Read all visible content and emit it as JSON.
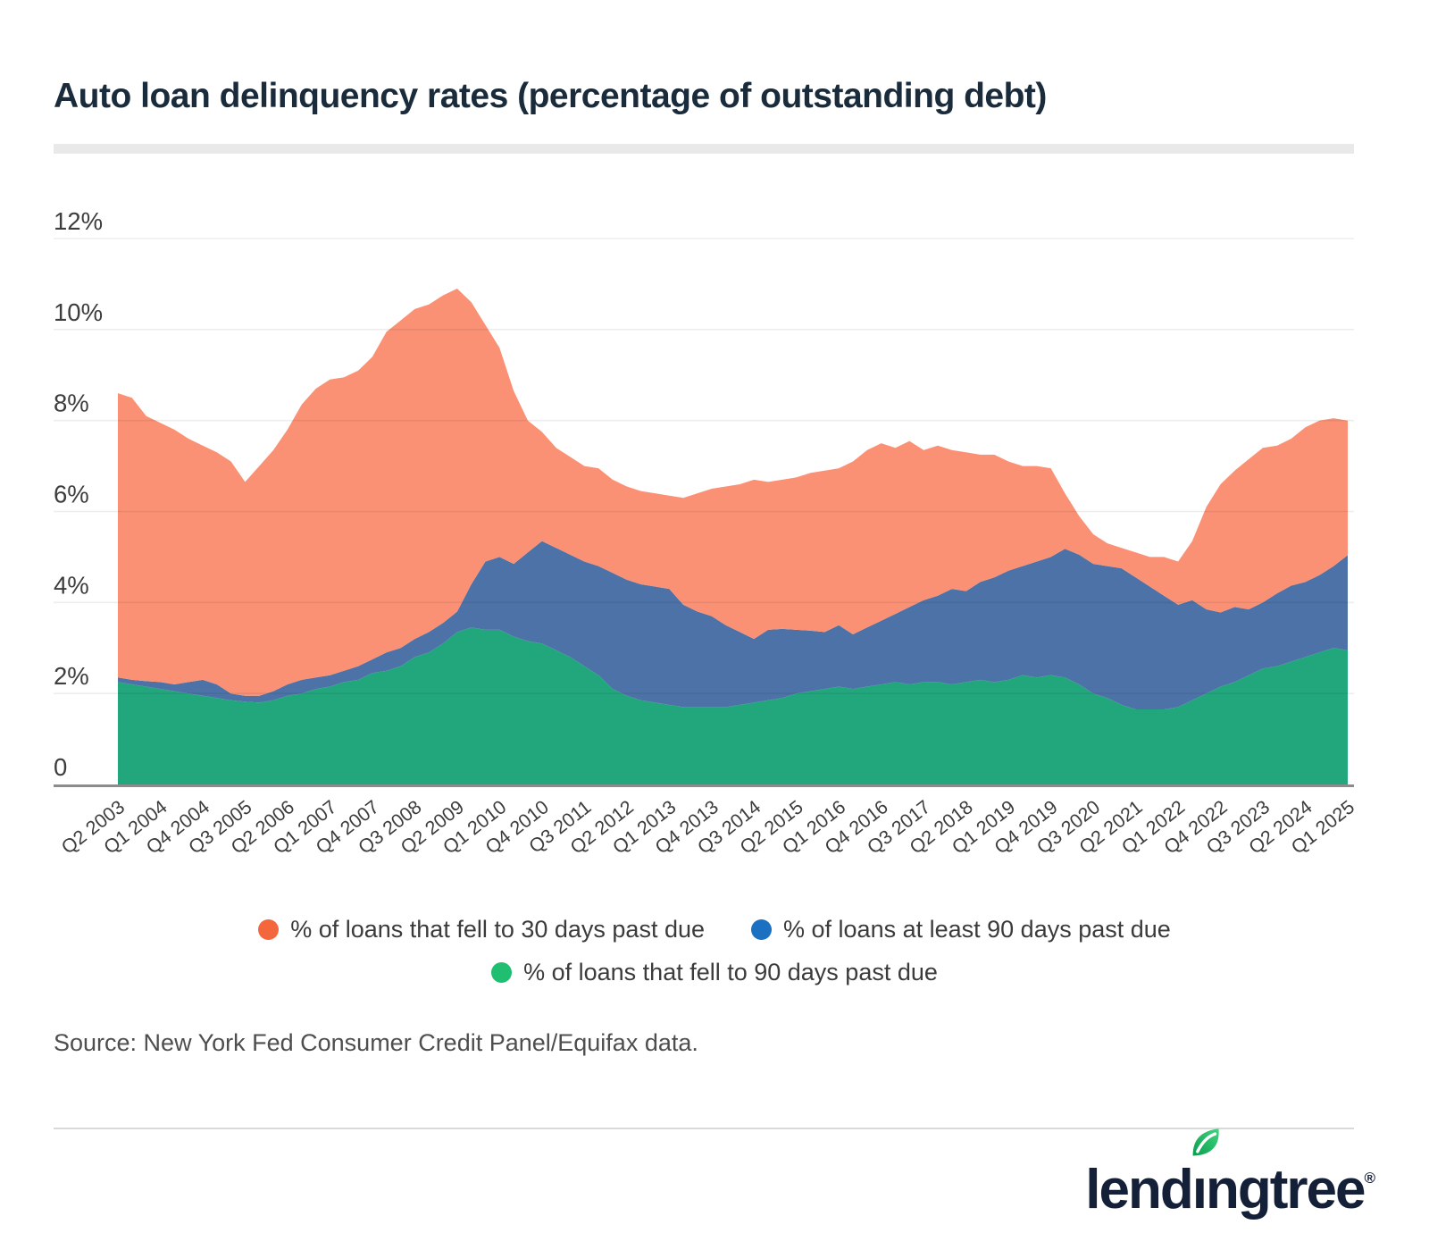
{
  "header": {
    "title": "Auto loan delinquency rates (percentage of outstanding debt)"
  },
  "chart_data": {
    "type": "area",
    "stacked": true,
    "title": "Auto loan delinquency rates (percentage of outstanding debt)",
    "xlabel": "",
    "ylabel": "",
    "ylim": [
      0,
      12
    ],
    "grid": true,
    "legend_position": "bottom",
    "x_tick_step": 3,
    "categories": [
      "Q2 2003",
      "Q3 2003",
      "Q4 2003",
      "Q1 2004",
      "Q2 2004",
      "Q3 2004",
      "Q4 2004",
      "Q1 2005",
      "Q2 2005",
      "Q3 2005",
      "Q4 2005",
      "Q1 2006",
      "Q2 2006",
      "Q3 2006",
      "Q4 2006",
      "Q1 2007",
      "Q2 2007",
      "Q3 2007",
      "Q4 2007",
      "Q1 2008",
      "Q2 2008",
      "Q3 2008",
      "Q4 2008",
      "Q1 2009",
      "Q2 2009",
      "Q3 2009",
      "Q4 2009",
      "Q1 2010",
      "Q2 2010",
      "Q3 2010",
      "Q4 2010",
      "Q1 2011",
      "Q2 2011",
      "Q3 2011",
      "Q4 2011",
      "Q1 2012",
      "Q2 2012",
      "Q3 2012",
      "Q4 2012",
      "Q1 2013",
      "Q2 2013",
      "Q3 2013",
      "Q4 2013",
      "Q1 2014",
      "Q2 2014",
      "Q3 2014",
      "Q4 2014",
      "Q1 2015",
      "Q2 2015",
      "Q3 2015",
      "Q4 2015",
      "Q1 2016",
      "Q2 2016",
      "Q3 2016",
      "Q4 2016",
      "Q1 2017",
      "Q2 2017",
      "Q3 2017",
      "Q4 2017",
      "Q1 2018",
      "Q2 2018",
      "Q3 2018",
      "Q4 2018",
      "Q1 2019",
      "Q2 2019",
      "Q3 2019",
      "Q4 2019",
      "Q1 2020",
      "Q2 2020",
      "Q3 2020",
      "Q4 2020",
      "Q1 2021",
      "Q2 2021",
      "Q3 2021",
      "Q4 2021",
      "Q1 2022",
      "Q2 2022",
      "Q3 2022",
      "Q4 2022",
      "Q1 2023",
      "Q2 2023",
      "Q3 2023",
      "Q4 2023",
      "Q1 2024",
      "Q2 2024",
      "Q3 2024",
      "Q4 2024",
      "Q1 2025"
    ],
    "y_ticks": [
      {
        "value": 12,
        "label": "12%"
      },
      {
        "value": 10,
        "label": "10%"
      },
      {
        "value": 8,
        "label": "8%"
      },
      {
        "value": 6,
        "label": "6%"
      },
      {
        "value": 4,
        "label": "4%"
      },
      {
        "value": 2,
        "label": "2%"
      },
      {
        "value": 0,
        "label": "0"
      }
    ],
    "series": [
      {
        "id": "fell30",
        "name": "% of loans that fell to 30 days past due",
        "fill": "#FB9174",
        "dot": "#F4673D",
        "values": [
          6.25,
          6.2,
          5.83,
          5.7,
          5.6,
          5.35,
          5.15,
          5.1,
          5.1,
          4.7,
          5.05,
          5.3,
          5.6,
          6.05,
          6.35,
          6.5,
          6.45,
          6.5,
          6.65,
          7.05,
          7.2,
          7.25,
          7.2,
          7.2,
          7.1,
          6.2,
          5.2,
          4.6,
          3.8,
          2.9,
          2.4,
          2.2,
          2.15,
          2.1,
          2.15,
          2.05,
          2.05,
          2.05,
          2.05,
          2.05,
          2.35,
          2.6,
          2.8,
          3.05,
          3.25,
          3.5,
          3.25,
          3.28,
          3.35,
          3.47,
          3.55,
          3.45,
          3.8,
          3.9,
          3.9,
          3.65,
          3.65,
          3.3,
          3.3,
          3.05,
          3.05,
          2.8,
          2.7,
          2.4,
          2.2,
          2.1,
          1.95,
          1.22,
          0.85,
          0.65,
          0.5,
          0.45,
          0.55,
          0.65,
          0.85,
          0.95,
          1.3,
          2.25,
          2.82,
          3.0,
          3.3,
          3.4,
          3.25,
          3.23,
          3.4,
          3.4,
          3.25,
          2.96
        ]
      },
      {
        "id": "least90",
        "name": "% of loans at least 90 days past due",
        "fill": "#4C72A7",
        "dot": "#1B70C2",
        "values": [
          0.1,
          0.1,
          0.12,
          0.15,
          0.15,
          0.25,
          0.35,
          0.3,
          0.15,
          0.13,
          0.15,
          0.2,
          0.25,
          0.3,
          0.25,
          0.25,
          0.25,
          0.3,
          0.3,
          0.4,
          0.4,
          0.4,
          0.45,
          0.45,
          0.45,
          0.95,
          1.5,
          1.6,
          1.6,
          1.95,
          2.25,
          2.25,
          2.25,
          2.3,
          2.4,
          2.55,
          2.55,
          2.55,
          2.55,
          2.55,
          2.25,
          2.1,
          2.0,
          1.8,
          1.6,
          1.4,
          1.55,
          1.52,
          1.4,
          1.33,
          1.25,
          1.35,
          1.2,
          1.3,
          1.4,
          1.5,
          1.7,
          1.8,
          1.9,
          2.1,
          2.0,
          2.15,
          2.3,
          2.4,
          2.4,
          2.55,
          2.6,
          2.83,
          2.85,
          2.85,
          2.9,
          3.0,
          2.9,
          2.7,
          2.5,
          2.25,
          2.2,
          1.85,
          1.63,
          1.65,
          1.45,
          1.45,
          1.6,
          1.67,
          1.65,
          1.7,
          1.8,
          2.09
        ]
      },
      {
        "id": "fell90",
        "name": "% of loans that fell to 90 days past due",
        "fill": "#22A77D",
        "dot": "#1FBE70",
        "values": [
          2.25,
          2.2,
          2.15,
          2.1,
          2.05,
          2.0,
          1.95,
          1.9,
          1.85,
          1.82,
          1.8,
          1.85,
          1.95,
          2.0,
          2.1,
          2.15,
          2.25,
          2.3,
          2.45,
          2.5,
          2.6,
          2.8,
          2.9,
          3.1,
          3.35,
          3.45,
          3.4,
          3.4,
          3.25,
          3.15,
          3.1,
          2.95,
          2.8,
          2.6,
          2.4,
          2.1,
          1.95,
          1.85,
          1.8,
          1.75,
          1.7,
          1.7,
          1.7,
          1.7,
          1.75,
          1.8,
          1.85,
          1.9,
          2.0,
          2.05,
          2.1,
          2.15,
          2.1,
          2.15,
          2.2,
          2.25,
          2.2,
          2.25,
          2.25,
          2.2,
          2.25,
          2.3,
          2.25,
          2.3,
          2.4,
          2.35,
          2.4,
          2.35,
          2.2,
          2.0,
          1.9,
          1.75,
          1.65,
          1.65,
          1.65,
          1.7,
          1.85,
          2.0,
          2.15,
          2.25,
          2.4,
          2.55,
          2.6,
          2.7,
          2.8,
          2.9,
          3.0,
          2.95
        ]
      }
    ],
    "stack_bottom_to_top": [
      "fell90",
      "least90",
      "fell30"
    ],
    "legend_rows": [
      [
        "fell30",
        "least90"
      ],
      [
        "fell90"
      ]
    ]
  },
  "footer": {
    "source": "Source: New York Fed Consumer Credit Panel/Equifax data."
  },
  "logo": {
    "alt": "lendingtree",
    "pre": "lend",
    "i_char": "ı",
    "post": "ngtree",
    "registered": "®"
  }
}
